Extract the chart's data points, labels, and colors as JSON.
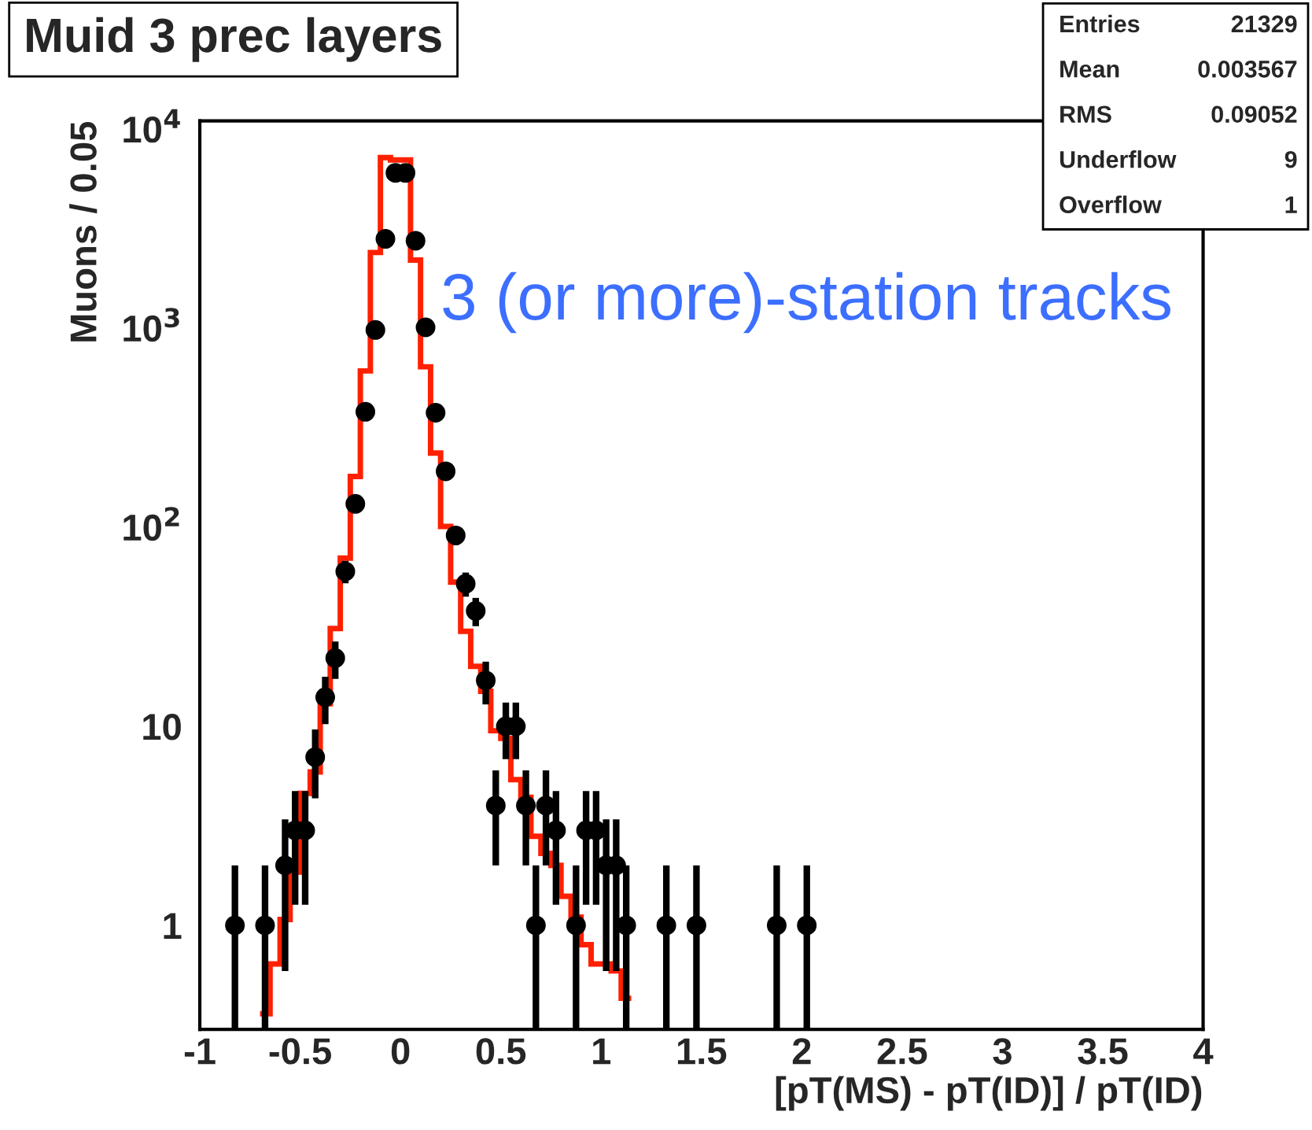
{
  "chart_data": {
    "type": "histogram",
    "title": "Muid 3 prec layers",
    "xlabel": "[pT(MS) - pT(ID)] / pT(ID)",
    "ylabel": "Muons / 0.05",
    "annotations": [
      "3 (or more)-station tracks",
      "Entries",
      "21329",
      "Mean",
      "0.003567",
      "RMS",
      "0.09052",
      "Underflow",
      "9",
      "Overflow",
      "1"
    ],
    "log": true,
    "grid": false,
    "legend": false,
    "xlim": [
      -1,
      4
    ],
    "xticks": [
      -1,
      -0.5,
      0,
      0.5,
      1,
      1.5,
      2,
      2.5,
      3,
      3.5,
      4
    ],
    "ylim": [
      0.3,
      11000
    ],
    "yticks": [
      1,
      10,
      {
        "value": 100,
        "label": "10$^{2}$"
      },
      {
        "value": 1000,
        "label": "10$^{3}$"
      },
      {
        "value": 10000,
        "label": "10$^{4}$"
      }
    ],
    "series": [
      {
        "type": "histogram",
        "color": "#ff2000",
        "bins": [
          -0.7,
          -0.65,
          -0.6,
          -0.55,
          -0.5,
          -0.45,
          -0.4,
          -0.35,
          -0.3,
          -0.25,
          -0.2,
          -0.15,
          -0.1,
          -0.05,
          0,
          0.05,
          0.1,
          0.15,
          0.2,
          0.25,
          0.3,
          0.35,
          0.4,
          0.45,
          0.5,
          0.55,
          0.6,
          0.65,
          0.7,
          0.75,
          0.8,
          0.85,
          0.9,
          0.95,
          1.0,
          1.05,
          1.1,
          1.15
        ],
        "values": [
          0.36,
          0.64,
          1.07,
          1.85,
          4.6,
          5.9,
          13,
          31,
          70,
          180,
          610,
          2400,
          7200,
          7000,
          7000,
          2200,
          640,
          236,
          101,
          53,
          30,
          20,
          15,
          9.5,
          8.7,
          5.4,
          4.4,
          2.8,
          2.3,
          2.0,
          1.4,
          1.1,
          0.8,
          0.64,
          0.64,
          0.59,
          0.43
        ]
      },
      {
        "type": "scatter",
        "color": "#000000",
        "marker": "circle",
        "x": [
          -0.825,
          -0.675,
          -0.575,
          -0.525,
          -0.475,
          -0.425,
          -0.375,
          -0.325,
          -0.275,
          -0.225,
          -0.175,
          -0.125,
          -0.075,
          -0.025,
          0.025,
          0.075,
          0.125,
          0.175,
          0.225,
          0.275,
          0.325,
          0.375,
          0.425,
          0.475,
          0.525,
          0.575,
          0.625,
          0.675,
          0.725,
          0.775,
          0.875,
          0.925,
          0.975,
          1.025,
          1.075,
          1.125,
          1.325,
          1.475,
          1.875,
          2.025
        ],
        "values": [
          1,
          1,
          2,
          3,
          3,
          7,
          14,
          22,
          60,
          131,
          380,
          980,
          2810,
          6030,
          6030,
          2750,
          1010,
          376,
          191,
          91,
          52,
          38,
          17,
          4,
          10,
          10,
          4,
          1,
          4,
          3,
          1,
          3,
          3,
          2,
          2,
          1,
          1,
          1,
          1,
          1
        ],
        "errors": [
          [
            0.3,
            2
          ],
          [
            0.3,
            2
          ],
          1.41,
          1.73,
          1.73,
          2.65,
          3.74,
          4.69,
          7.75,
          11.4,
          19.5,
          31.3,
          53,
          77.7,
          77.7,
          52.4,
          31.8,
          19.4,
          13.8,
          9.54,
          7.21,
          6.16,
          4.12,
          2,
          3.16,
          3.16,
          2,
          [
            0.3,
            2
          ],
          2,
          1.73,
          [
            0.3,
            2
          ],
          1.73,
          1.73,
          1.41,
          1.41,
          [
            0.3,
            2
          ],
          [
            0.3,
            2
          ],
          [
            0.3,
            2
          ],
          [
            0.3,
            2
          ],
          [
            0.3,
            2
          ]
        ]
      }
    ]
  }
}
